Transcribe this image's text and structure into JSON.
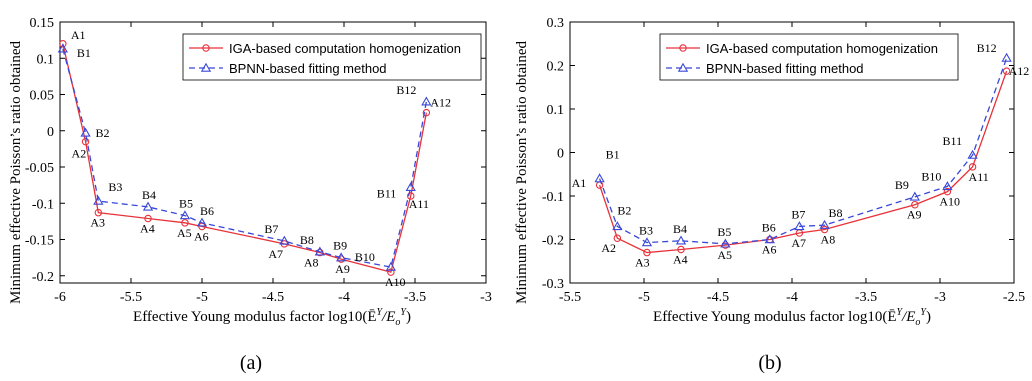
{
  "chart_data": [
    {
      "type": "line",
      "xlabel": "Effective Young modulus factor  log10(Ē",
      "xlabel_suffix": "/E",
      "xlabel_sup": "Y",
      "xlabel_sub": "o",
      "ylabel": "Minimum effective Poisson’s ratio obtained",
      "panel_label": "(a)",
      "xlim": [
        -6,
        -3
      ],
      "ylim": [
        -0.21,
        0.15
      ],
      "xticks": [
        -6,
        -5.5,
        -5,
        -4.5,
        -4,
        -3.5,
        -3
      ],
      "yticks": [
        0.15,
        0.1,
        0.05,
        0,
        -0.05,
        -0.1,
        -0.15,
        -0.2
      ],
      "xtick_labels": [
        "-6",
        "-5.5",
        "-5",
        "-4.5",
        "-4",
        "-3.5",
        "-3"
      ],
      "ytick_labels": [
        "0.15",
        "0.1",
        "0.05",
        "0",
        "-0.05",
        "-0.1",
        "-0.15",
        "-0.2"
      ],
      "legend_position": "top-right",
      "series": [
        {
          "name": "IGA-based computation homogenization",
          "color": "#e8323a",
          "marker": "circle",
          "dash": "solid",
          "labels": [
            "A1",
            "A2",
            "A3",
            "A4",
            "A5",
            "A6",
            "A7",
            "A8",
            "A9",
            "A10",
            "A11",
            "A12"
          ],
          "x": [
            -5.98,
            -5.82,
            -5.73,
            -5.38,
            -5.12,
            -5.0,
            -4.42,
            -4.17,
            -4.02,
            -3.67,
            -3.53,
            -3.42
          ],
          "y": [
            0.12,
            -0.015,
            -0.113,
            -0.121,
            -0.127,
            -0.132,
            -0.156,
            -0.168,
            -0.177,
            -0.195,
            -0.09,
            0.025
          ]
        },
        {
          "name": "BPNN-based fitting method",
          "color": "#3848d8",
          "marker": "triangle",
          "dash": "dashed",
          "labels": [
            "B1",
            "B2",
            "B3",
            "B4",
            "B5",
            "B6",
            "B7",
            "B8",
            "B9",
            "B10",
            "B11",
            "B12"
          ],
          "x": [
            -5.98,
            -5.82,
            -5.73,
            -5.38,
            -5.12,
            -5.0,
            -4.42,
            -4.17,
            -4.02,
            -3.67,
            -3.53,
            -3.42
          ],
          "y": [
            0.113,
            -0.003,
            -0.097,
            -0.105,
            -0.117,
            -0.127,
            -0.152,
            -0.167,
            -0.175,
            -0.188,
            -0.078,
            0.04
          ]
        }
      ]
    },
    {
      "type": "line",
      "xlabel": "Effective Young modulus factor  log10(Ē",
      "xlabel_suffix": "/E",
      "xlabel_sup": "Y",
      "xlabel_sub": "o",
      "ylabel": "Minimum effective Poisson’s ratio obtained",
      "panel_label": "(b)",
      "xlim": [
        -5.5,
        -2.5
      ],
      "ylim": [
        -0.3,
        0.3
      ],
      "xticks": [
        -5.5,
        -5,
        -4.5,
        -4,
        -3.5,
        -3,
        -2.5
      ],
      "yticks": [
        0.3,
        0.2,
        0.1,
        0,
        -0.1,
        -0.2,
        -0.3
      ],
      "xtick_labels": [
        "-5.5",
        "-5",
        "-4.5",
        "-4",
        "-3.5",
        "-3",
        "-2.5"
      ],
      "ytick_labels": [
        "0.3",
        "0.2",
        "0.1",
        "0",
        "-0.1",
        "-0.2",
        "-0.3"
      ],
      "legend_position": "top-right",
      "series": [
        {
          "name": "IGA-based computation homogenization",
          "color": "#e8323a",
          "marker": "circle",
          "dash": "solid",
          "labels": [
            "A1",
            "A2",
            "A3",
            "A4",
            "A5",
            "A6",
            "A7",
            "A8",
            "A9",
            "A10",
            "A11",
            "A12"
          ],
          "x": [
            -5.3,
            -5.18,
            -4.98,
            -4.75,
            -4.45,
            -4.15,
            -3.95,
            -3.78,
            -3.17,
            -2.95,
            -2.78,
            -2.55
          ],
          "y": [
            -0.075,
            -0.197,
            -0.23,
            -0.223,
            -0.213,
            -0.2,
            -0.185,
            -0.177,
            -0.12,
            -0.09,
            -0.033,
            0.187
          ]
        },
        {
          "name": "BPNN-based fitting method",
          "color": "#3848d8",
          "marker": "triangle",
          "dash": "dashed",
          "labels": [
            "B1",
            "B2",
            "B3",
            "B4",
            "B5",
            "B6",
            "B7",
            "B8",
            "B9",
            "B10",
            "B11",
            "B12"
          ],
          "x": [
            -5.3,
            -5.18,
            -4.98,
            -4.75,
            -4.45,
            -4.15,
            -3.95,
            -3.78,
            -3.17,
            -2.95,
            -2.78,
            -2.55
          ],
          "y": [
            -0.06,
            -0.17,
            -0.207,
            -0.203,
            -0.21,
            -0.2,
            -0.17,
            -0.167,
            -0.102,
            -0.078,
            -0.006,
            0.217
          ]
        }
      ]
    }
  ]
}
